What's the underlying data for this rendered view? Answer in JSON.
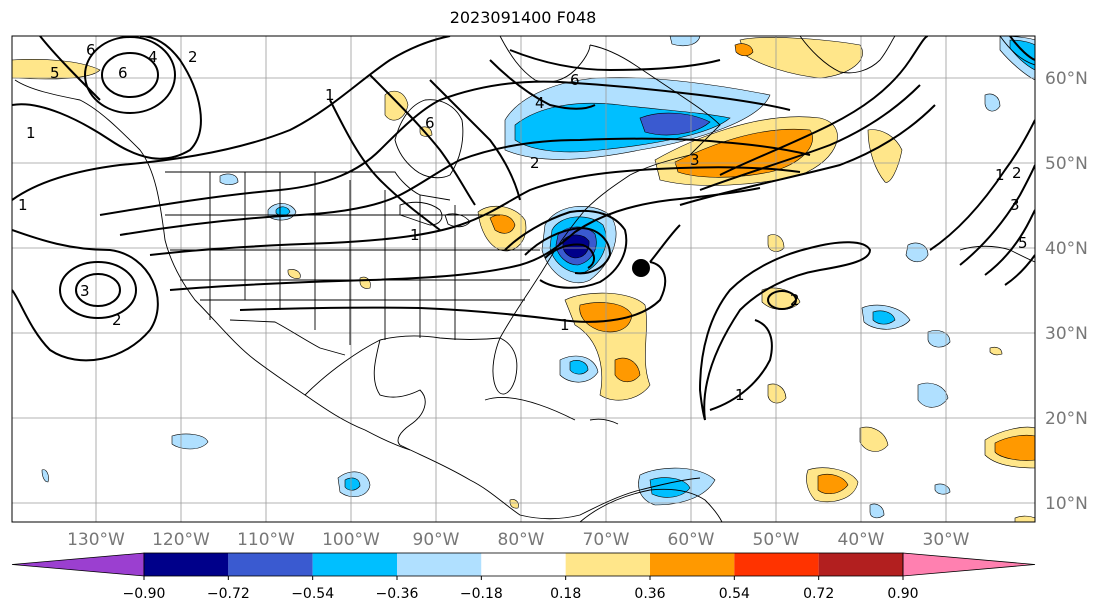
{
  "title": "2023091400 F048",
  "map": {
    "lon_labels": [
      "130°W",
      "120°W",
      "110°W",
      "100°W",
      "90°W",
      "80°W",
      "70°W",
      "60°W",
      "50°W",
      "40°W",
      "30°W"
    ],
    "lat_labels": [
      "60°N",
      "50°N",
      "40°N",
      "30°N",
      "20°N",
      "10°N"
    ],
    "contour_labels": [
      "6",
      "6",
      "4",
      "2",
      "5",
      "6",
      "6",
      "4",
      "3",
      "2",
      "1",
      "1",
      "3",
      "2",
      "1",
      "1",
      "1",
      "1",
      "2",
      "3",
      "1",
      "2",
      "5"
    ],
    "storm_marker": "black-dot"
  },
  "colorbar": {
    "ticks": [
      "−0.90",
      "−0.72",
      "−0.54",
      "−0.36",
      "−0.18",
      "0.18",
      "0.36",
      "0.54",
      "0.72",
      "0.90"
    ],
    "colors": [
      "#9b3fd0",
      "#00008a",
      "#3a5ad0",
      "#00bfff",
      "#b0e0ff",
      "#ffffff",
      "#ffe68a",
      "#ff9900",
      "#ff3300",
      "#b21f1f",
      "#ff80b0"
    ]
  }
}
